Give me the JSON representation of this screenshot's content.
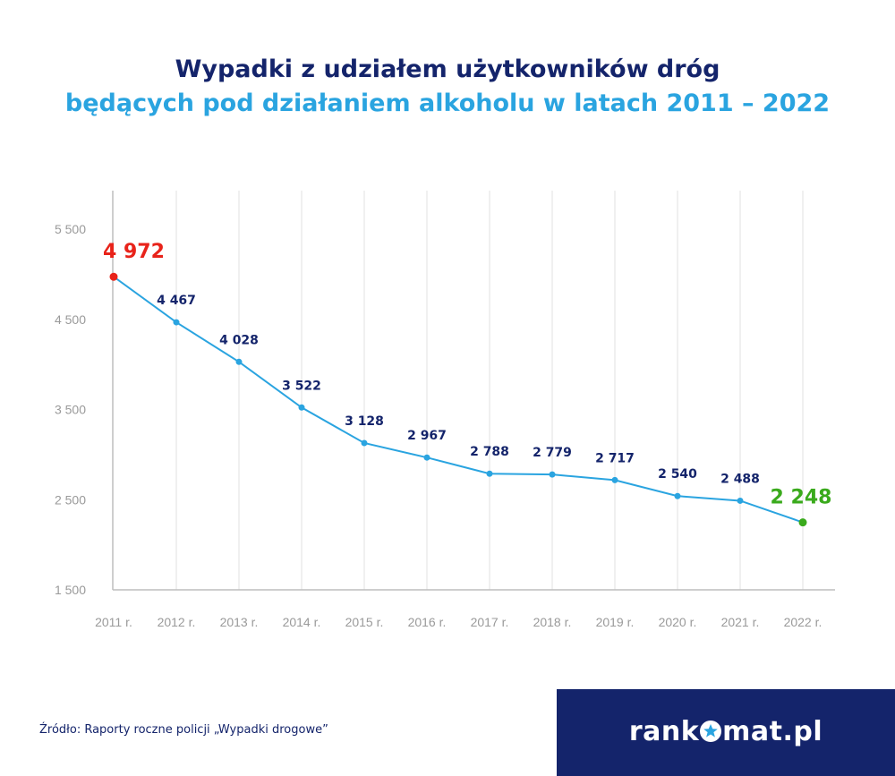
{
  "title_line1": "Wypadki z udziałem użytkowników dróg",
  "title_line2": "będących pod działaniem alkoholu w latach 2011 – 2022",
  "source": "Źródło: Raporty roczne policji „Wypadki drogowe”",
  "brand": {
    "prefix": "rank",
    "suffix": "mat.pl",
    "star_icon": "star-icon"
  },
  "colors": {
    "title_dark": "#14246b",
    "title_light": "#2aa4e0",
    "line": "#2aa4e0",
    "max_point": "#e8231a",
    "min_point": "#3aaa1c",
    "label": "#14246b",
    "axis_text": "#9a9a9a",
    "grid": "#e2e2e2"
  },
  "chart_data": {
    "type": "line",
    "categories": [
      "2011 r.",
      "2012 r.",
      "2013 r.",
      "2014 r.",
      "2015 r.",
      "2016 r.",
      "2017 r.",
      "2018 r.",
      "2019 r.",
      "2020 r.",
      "2021 r.",
      "2022 r."
    ],
    "series": [
      {
        "values": [
          4972,
          4467,
          4028,
          3522,
          3128,
          2967,
          2788,
          2779,
          2717,
          2540,
          2488,
          2248
        ]
      }
    ],
    "data_labels": [
      "4 972",
      "4 467",
      "4 028",
      "3 522",
      "3 128",
      "2 967",
      "2 788",
      "2 779",
      "2 717",
      "2 540",
      "2 488",
      "2 248"
    ],
    "highlight": {
      "max_index": 0,
      "min_index": 11
    },
    "yticks": [
      1500,
      2500,
      3500,
      4500,
      5500
    ],
    "ytick_labels": [
      "1 500",
      "2 500",
      "3 500",
      "4 500",
      "5 500"
    ],
    "ylim": [
      1500,
      5500
    ],
    "grid": "vertical",
    "legend": "none"
  }
}
